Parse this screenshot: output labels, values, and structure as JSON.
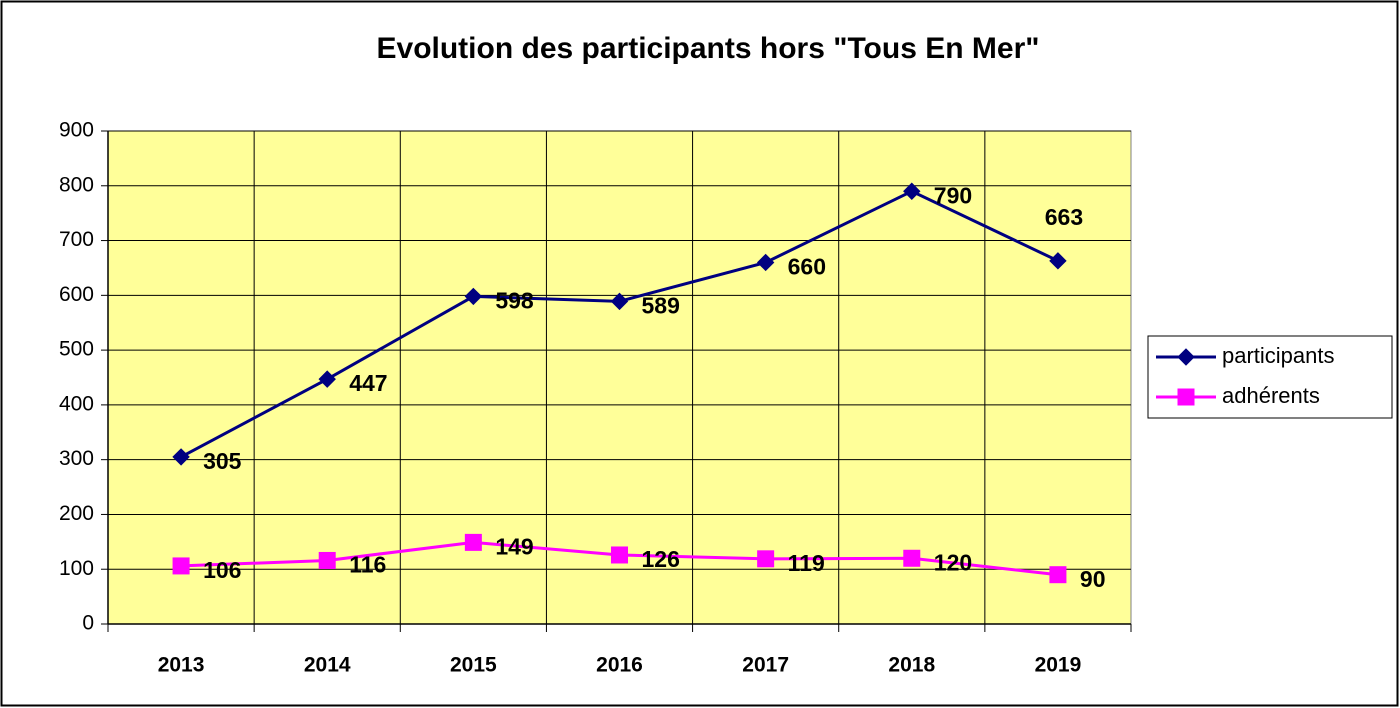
{
  "chart_data": {
    "type": "line",
    "title": "Evolution des participants hors \"Tous En Mer\"",
    "categories": [
      "2013",
      "2014",
      "2015",
      "2016",
      "2017",
      "2018",
      "2019"
    ],
    "series": [
      {
        "name": "participants",
        "color": "#000080",
        "marker": "diamond",
        "values": [
          305,
          447,
          598,
          589,
          660,
          790,
          663
        ]
      },
      {
        "name": "adhérents",
        "color": "#ff00ff",
        "marker": "square",
        "values": [
          106,
          116,
          149,
          126,
          119,
          120,
          90
        ]
      }
    ],
    "ylim": [
      0,
      900
    ],
    "yticks": [
      0,
      100,
      200,
      300,
      400,
      500,
      600,
      700,
      800,
      900
    ],
    "grid": true,
    "legend": "right",
    "plot_background": "#ffff99"
  }
}
